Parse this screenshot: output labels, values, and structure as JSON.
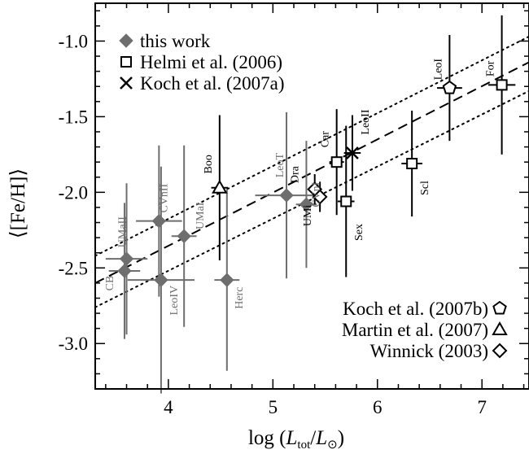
{
  "chart_data": {
    "type": "scatter",
    "xlabel": "log (L_tot/L_⊙)",
    "ylabel": "⟨[Fe/H]⟩",
    "xlim": [
      3.3,
      7.45
    ],
    "ylim": [
      -3.3,
      -0.75
    ],
    "xticks": [
      4,
      5,
      6,
      7
    ],
    "xtick_labels": [
      "4",
      "5",
      "6",
      "7"
    ],
    "yticks": [
      -3.0,
      -2.5,
      -2.0,
      -1.5,
      -1.0
    ],
    "ytick_labels": [
      "-3.0",
      "-2.5",
      "-2.0",
      "-1.5",
      "-1.0"
    ],
    "legend_top": [
      {
        "marker": "diamond-filled",
        "label": "this work"
      },
      {
        "marker": "square-open",
        "label": "Helmi et al. (2006)"
      },
      {
        "marker": "cross",
        "label": "Koch et al. (2007a)"
      }
    ],
    "legend_bottom": [
      {
        "marker": "pentagon-open",
        "label": "Koch et al. (2007b)"
      },
      {
        "marker": "triangle-open",
        "label": "Martin et al. (2007)"
      },
      {
        "marker": "diamond-open",
        "label": "Winnick (2003)"
      }
    ],
    "fits": [
      {
        "style": "dashed",
        "x": [
          3.3,
          7.45
        ],
        "y": [
          -2.6,
          -1.14
        ]
      },
      {
        "style": "dotted",
        "x": [
          3.3,
          7.45
        ],
        "y": [
          -2.42,
          -0.97
        ]
      },
      {
        "style": "dotted",
        "x": [
          3.3,
          7.45
        ],
        "y": [
          -2.76,
          -1.33
        ]
      }
    ],
    "points": [
      {
        "label": "CB",
        "x": 3.58,
        "y": -2.52,
        "xerr": 0.15,
        "yerr": 0.45,
        "marker": "diamond-filled",
        "color": "#6e6e6e"
      },
      {
        "label": "UMaII",
        "x": 3.6,
        "y": -2.44,
        "xerr": 0.2,
        "yerr": 0.5,
        "marker": "diamond-filled",
        "color": "#6e6e6e"
      },
      {
        "label": "CVnII",
        "x": 3.91,
        "y": -2.19,
        "xerr": 0.22,
        "yerr": 0.5,
        "marker": "diamond-filled",
        "color": "#6e6e6e"
      },
      {
        "label": "LeoIV",
        "x": 3.93,
        "y": -2.58,
        "xerr": 0.32,
        "yerr": 0.75,
        "marker": "diamond-filled",
        "color": "#6e6e6e"
      },
      {
        "label": "UMaI",
        "x": 4.15,
        "y": -2.29,
        "xerr": 0.12,
        "yerr": 0.6,
        "marker": "diamond-filled",
        "color": "#6e6e6e"
      },
      {
        "label": "Herc",
        "x": 4.56,
        "y": -2.58,
        "xerr": 0.12,
        "yerr": 0.6,
        "marker": "diamond-filled",
        "color": "#6e6e6e"
      },
      {
        "label": "LeoT",
        "x": 5.13,
        "y": -2.02,
        "xerr": 0.3,
        "yerr": 0.55,
        "marker": "diamond-filled",
        "color": "#6e6e6e"
      },
      {
        "label": "CVnI",
        "x": 5.32,
        "y": -2.08,
        "xerr": 0.1,
        "yerr": 0.42,
        "marker": "diamond-filled",
        "color": "#6e6e6e"
      },
      {
        "label": "Boo",
        "x": 4.49,
        "y": -1.97,
        "xerr": 0.08,
        "yerr": 0.48,
        "marker": "triangle-open",
        "color": "#000000"
      },
      {
        "label": "Dra",
        "x": 5.4,
        "y": -1.98,
        "xerr": 0.06,
        "yerr": 0.1,
        "marker": "diamond-open",
        "color": "#000000"
      },
      {
        "label": "UMi",
        "x": 5.45,
        "y": -2.03,
        "xerr": 0.06,
        "yerr": 0.1,
        "marker": "diamond-open",
        "color": "#000000"
      },
      {
        "label": "Car",
        "x": 5.61,
        "y": -1.8,
        "xerr": 0.07,
        "yerr": 0.35,
        "marker": "square-open",
        "color": "#000000"
      },
      {
        "label": "Sex",
        "x": 5.7,
        "y": -2.06,
        "xerr": 0.08,
        "yerr": 0.5,
        "marker": "square-open",
        "color": "#000000"
      },
      {
        "label": "LeoII",
        "x": 5.76,
        "y": -1.74,
        "xerr": 0.08,
        "yerr": 0.25,
        "marker": "cross",
        "color": "#000000"
      },
      {
        "label": "Scl",
        "x": 6.33,
        "y": -1.81,
        "xerr": 0.1,
        "yerr": 0.35,
        "marker": "square-open",
        "color": "#000000"
      },
      {
        "label": "LeoI",
        "x": 6.69,
        "y": -1.31,
        "xerr": 0.12,
        "yerr": 0.35,
        "marker": "pentagon-open",
        "color": "#000000"
      },
      {
        "label": "For",
        "x": 7.19,
        "y": -1.29,
        "xerr": 0.13,
        "yerr": 0.46,
        "marker": "square-open",
        "color": "#000000"
      }
    ]
  }
}
